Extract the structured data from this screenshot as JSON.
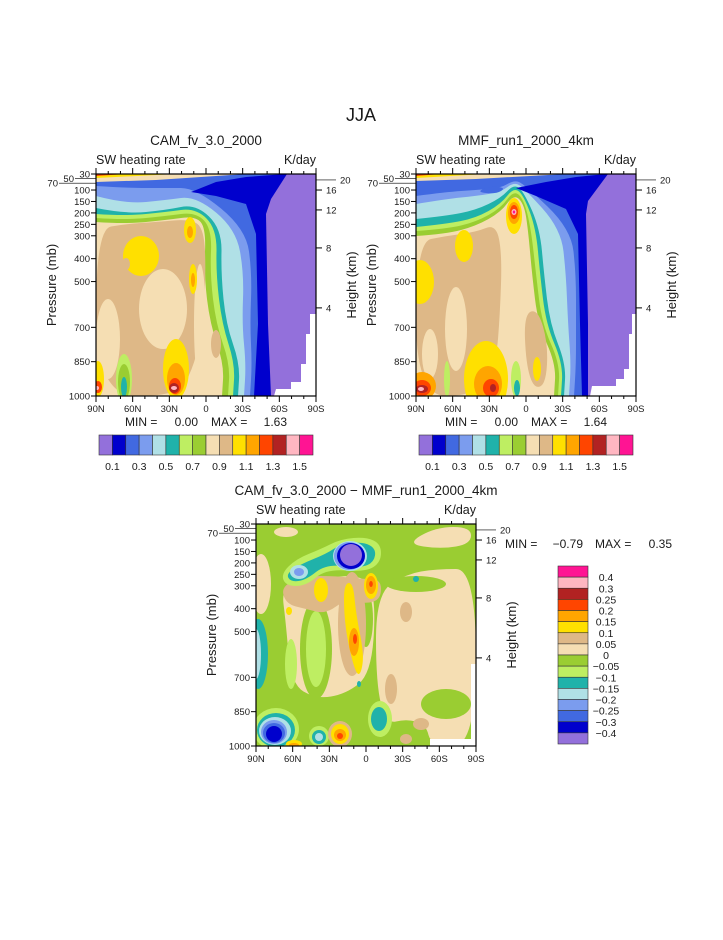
{
  "title": "JJA",
  "axes": {
    "x_ticks": [
      "90N",
      "60N",
      "30N",
      "0",
      "30S",
      "60S",
      "90S"
    ],
    "x_tick_values": [
      90,
      60,
      30,
      0,
      -30,
      -60,
      -90
    ],
    "y_ticks": [
      "30",
      "50",
      "70",
      "100",
      "150",
      "200",
      "250",
      "300",
      "400",
      "500",
      "700",
      "850",
      "1000"
    ],
    "y_right_ticks": [
      "20",
      "16",
      "12",
      "8",
      "4"
    ],
    "ylabel": "Pressure (mb)",
    "ylabel_right": "Height (km)",
    "ylim": [
      1000,
      30
    ]
  },
  "palette": [
    "#9370DB",
    "#0000CD",
    "#4169E1",
    "#7B9CEE",
    "#B0E0E6",
    "#20B2AA",
    "#BEEE62",
    "#9ACD32",
    "#F5DEB3",
    "#DEB887",
    "#FFE000",
    "#FFA500",
    "#FF4500",
    "#B22222",
    "#FFB6C1",
    "#FF1493"
  ],
  "chart_data": [
    {
      "type": "heatmap",
      "title": "CAM_fv_3.0_2000",
      "left_string": "SW heating rate",
      "right_string": "K/day",
      "min_label": "MIN =",
      "min": "0.00",
      "max_label": "MAX =",
      "max": "1.63",
      "levels": [
        0.1,
        0.2,
        0.3,
        0.4,
        0.5,
        0.6,
        0.7,
        0.8,
        0.9,
        1.0,
        1.1,
        1.2,
        1.3,
        1.4,
        1.5
      ],
      "colorbar_labels": [
        "0.1",
        "0.3",
        "0.5",
        "0.7",
        "0.9",
        "1.1",
        "1.3",
        "1.5"
      ]
    },
    {
      "type": "heatmap",
      "title": "MMF_run1_2000_4km",
      "left_string": "SW heating rate",
      "right_string": "K/day",
      "min_label": "MIN =",
      "min": "0.00",
      "max_label": "MAX =",
      "max": "1.64",
      "levels": [
        0.1,
        0.2,
        0.3,
        0.4,
        0.5,
        0.6,
        0.7,
        0.8,
        0.9,
        1.0,
        1.1,
        1.2,
        1.3,
        1.4,
        1.5
      ],
      "colorbar_labels": [
        "0.1",
        "0.3",
        "0.5",
        "0.7",
        "0.9",
        "1.1",
        "1.3",
        "1.5"
      ]
    },
    {
      "type": "heatmap",
      "title": "CAM_fv_3.0_2000 − MMF_run1_2000_4km",
      "left_string": "SW heating rate",
      "right_string": "K/day",
      "min_label": "MIN =",
      "min": "−0.79",
      "max_label": "MAX =",
      "max": "0.35",
      "levels": [
        -0.4,
        -0.3,
        -0.25,
        -0.2,
        -0.15,
        -0.1,
        -0.05,
        0,
        0.05,
        0.1,
        0.15,
        0.2,
        0.25,
        0.3,
        0.4
      ],
      "colorbar_labels": [
        "0.4",
        "0.3",
        "0.25",
        "0.2",
        "0.15",
        "0.1",
        "0.05",
        "0",
        "−0.05",
        "−0.1",
        "−0.15",
        "−0.2",
        "−0.25",
        "−0.3",
        "−0.4"
      ]
    }
  ]
}
